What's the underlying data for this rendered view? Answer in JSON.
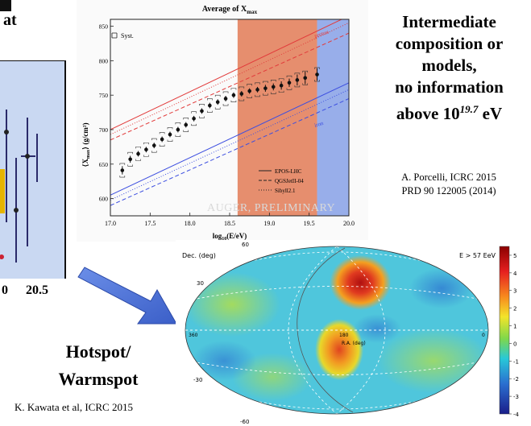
{
  "left_fragment": {
    "title_fragment": "at",
    "tick_labels": [
      "0",
      "20.5"
    ]
  },
  "right_text": {
    "lines": [
      "Intermediate",
      "composition or",
      "models,",
      "no information",
      "above 10",
      "19.7",
      " eV"
    ]
  },
  "citation_1": {
    "line1": "A. Porcelli, ICRC 2015",
    "line2": "PRD 90 122005 (2014)"
  },
  "hotspot": {
    "line1": "Hotspot/",
    "line2": "Warmspot"
  },
  "citation_2": "K. Kawata et al, ICRC 2015",
  "colors": {
    "band_orange": "#e27a55",
    "band_blue": "#7f9be6",
    "epos_line": "#e23b3b",
    "proton_line": "#3d4fe0",
    "arrow": "#4a72d8"
  },
  "chart_data": [
    {
      "type": "scatter",
      "title": "Average of X",
      "title_sub": "max",
      "xlabel": "log",
      "xlabel_sub": "10",
      "xlabel_tail": "(E/eV)",
      "ylabel": "⟨X",
      "ylabel_sub": "max",
      "ylabel_tail": "⟩ (g/cm²)",
      "xlim": [
        17.0,
        20.0
      ],
      "ylim": [
        575,
        860
      ],
      "x_ticks": [
        "17.0",
        "17.5",
        "18.0",
        "18.5",
        "19.0",
        "19.5",
        "20.0"
      ],
      "y_ticks": [
        "600",
        "650",
        "700",
        "750",
        "800",
        "850"
      ],
      "legend_syst": "Syst.",
      "legend_models": [
        "EPOS-LHC",
        "QGSJetII-04",
        "Sibyll2.1"
      ],
      "band_labels": [
        "proton",
        "iron"
      ],
      "watermark": "AUGER, PRELIMINARY",
      "bands": [
        {
          "from": 18.6,
          "to": 19.6
        },
        {
          "from": 19.6,
          "to": 20.0
        }
      ],
      "points": {
        "x": [
          17.15,
          17.25,
          17.35,
          17.45,
          17.55,
          17.65,
          17.75,
          17.85,
          17.95,
          18.05,
          18.15,
          18.25,
          18.35,
          18.45,
          18.55,
          18.65,
          18.75,
          18.85,
          18.95,
          19.05,
          19.15,
          19.25,
          19.35,
          19.45,
          19.6
        ],
        "y": [
          641,
          657,
          665,
          671,
          677,
          686,
          693,
          700,
          707,
          716,
          727,
          735,
          740,
          745,
          750,
          752,
          756,
          758,
          760,
          762,
          764,
          768,
          772,
          775,
          780
        ],
        "err": [
          6,
          5,
          4,
          4,
          4,
          4,
          4,
          4,
          4,
          4,
          4,
          4,
          4,
          4,
          4,
          4,
          4,
          4,
          5,
          5,
          6,
          6,
          8,
          9,
          9
        ]
      },
      "model_lines": [
        {
          "name": "proton EPOS-LHC",
          "color": "#e23b3b",
          "dash": "",
          "x": [
            17.0,
            20.0
          ],
          "y": [
            700,
            865
          ]
        },
        {
          "name": "proton QGSJetII-04",
          "color": "#e23b3b",
          "dash": "5,3",
          "x": [
            17.0,
            20.0
          ],
          "y": [
            685,
            840
          ]
        },
        {
          "name": "proton Sibyll2.1",
          "color": "#e23b3b",
          "dash": "1,2",
          "x": [
            17.0,
            20.0
          ],
          "y": [
            693,
            855
          ]
        },
        {
          "name": "iron EPOS-LHC",
          "color": "#3d4fe0",
          "dash": "",
          "x": [
            17.0,
            20.0
          ],
          "y": [
            605,
            768
          ]
        },
        {
          "name": "iron QGSJetII-04",
          "color": "#3d4fe0",
          "dash": "5,3",
          "x": [
            17.0,
            20.0
          ],
          "y": [
            590,
            745
          ]
        },
        {
          "name": "iron Sibyll2.1",
          "color": "#3d4fe0",
          "dash": "1,2",
          "x": [
            17.0,
            20.0
          ],
          "y": [
            598,
            758
          ]
        }
      ]
    },
    {
      "type": "heatmap",
      "title": "E > 57 EeV",
      "ylabel": "Dec. (deg)",
      "xlabel": "R.A. (deg)",
      "dec_labels": [
        "60",
        "30",
        "-30",
        "-60"
      ],
      "ra_labels": [
        "360",
        "180",
        "0"
      ],
      "colorbar_ticks": [
        "5",
        "4",
        "3",
        "2",
        "1",
        "0",
        "-1",
        "-2",
        "-3",
        "-4"
      ],
      "colorbar_range": [
        -4,
        5.5
      ],
      "hotspots": [
        {
          "name": "north hotspot",
          "ra": 146,
          "dec": 43,
          "level": 5
        },
        {
          "name": "south warmspot",
          "ra": 177,
          "dec": -17,
          "level": 3.5
        }
      ]
    }
  ]
}
